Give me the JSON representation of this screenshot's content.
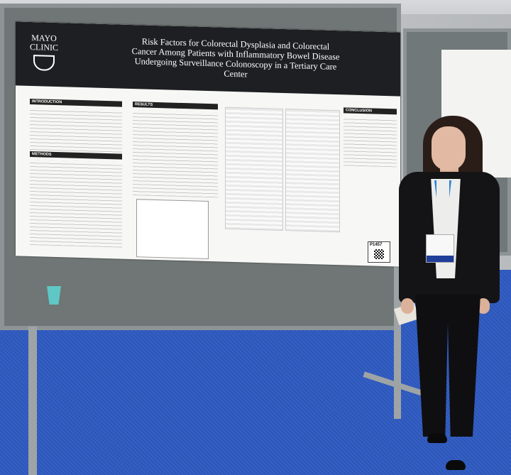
{
  "poster": {
    "institution_line1": "MAYO",
    "institution_line2": "CLINIC",
    "title": "Risk Factors for Colorectal Dysplasia and Colorectal Cancer Among Patients with Inflammatory Bowel Disease Undergoing Surveillance Colonoscopy in a Tertiary Care Center",
    "sections": [
      "INTRODUCTION",
      "RESULTS",
      "METHODS",
      "CONCLUSION"
    ],
    "board_number": "P1457"
  },
  "colors": {
    "header": "#1d1f22",
    "floor": "#3360c4",
    "lanyard": "#2b7fd6"
  }
}
